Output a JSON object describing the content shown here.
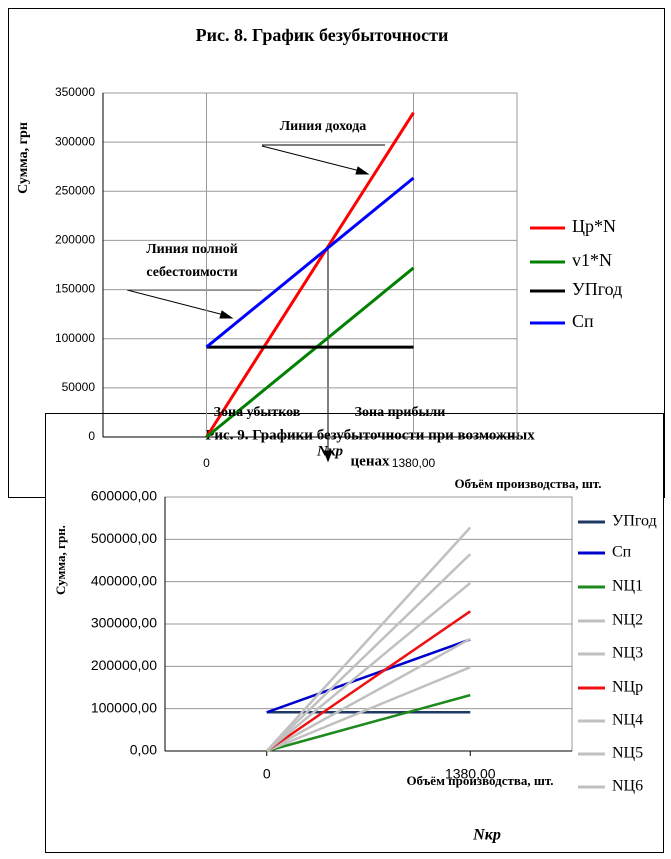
{
  "chart_data": [
    {
      "type": "line",
      "title": "Рис. 8. График безубыточности",
      "y_label": "Сумма, грн",
      "x_label": "Объём производства, шт.",
      "x": [
        0,
        1380
      ],
      "xlim": [
        -690,
        2070
      ],
      "xticks": [
        0,
        {
          "value": 1380,
          "label": "1380,00"
        }
      ],
      "ylim": [
        0,
        350000
      ],
      "yticks": [
        0,
        50000,
        100000,
        150000,
        200000,
        250000,
        300000,
        350000
      ],
      "grid": true,
      "legend": "right",
      "series": [
        {
          "name": "Цр*N",
          "color": "#ff0000",
          "values": [
            0,
            330000
          ]
        },
        {
          "name": "v1*N",
          "color": "#008000",
          "values": [
            0,
            172000
          ]
        },
        {
          "name": "УПгод",
          "color": "#000000",
          "values": [
            91500,
            91500
          ]
        },
        {
          "name": "Сп",
          "color": "#0000ff",
          "values": [
            91500,
            263500
          ]
        }
      ],
      "annotations": [
        "Линия дохода",
        "Линия полной",
        "себестоимости",
        "Зона убытков",
        "Зона прибыли",
        "Nкр"
      ]
    },
    {
      "type": "line",
      "title": [
        "Рис. 9. Графики безубыточности при возможных",
        "ценах"
      ],
      "y_label": "Сумма, грн.",
      "x_label": "Объём производства, шт.",
      "x": [
        0,
        1380
      ],
      "xlim": [
        -690,
        2070
      ],
      "xticks": [
        0,
        {
          "value": 1380,
          "label": "1380,00"
        }
      ],
      "ylim": [
        0,
        600000
      ],
      "yticks": [
        {
          "value": 0,
          "label": "0,00"
        },
        {
          "value": 100000,
          "label": "100000,00"
        },
        {
          "value": 200000,
          "label": "200000,00"
        },
        {
          "value": 300000,
          "label": "300000,00"
        },
        {
          "value": 400000,
          "label": "400000,00"
        },
        {
          "value": 500000,
          "label": "500000,00"
        },
        {
          "value": 600000,
          "label": "600000,00"
        }
      ],
      "grid": true,
      "legend": "right",
      "series": [
        {
          "name": "УПгод",
          "color": "#1f3864",
          "values": [
            91500,
            91500
          ]
        },
        {
          "name": "Сп",
          "color": "#0000cc",
          "values": [
            91500,
            263500
          ]
        },
        {
          "name": "NЦ1",
          "color": "#1e8a1e",
          "values": [
            0,
            132000
          ]
        },
        {
          "name": "NЦ2",
          "color": "#c0c0c0",
          "values": [
            0,
            198000
          ]
        },
        {
          "name": "NЦ3",
          "color": "#c0c0c0",
          "values": [
            0,
            265000
          ]
        },
        {
          "name": "NЦр",
          "color": "#ee1111",
          "values": [
            0,
            330000
          ]
        },
        {
          "name": "NЦ4",
          "color": "#c0c0c0",
          "values": [
            0,
            397000
          ]
        },
        {
          "name": "NЦ5",
          "color": "#c0c0c0",
          "values": [
            0,
            465000
          ]
        },
        {
          "name": "NЦ6",
          "color": "#c0c0c0",
          "values": [
            0,
            528000
          ]
        }
      ],
      "annotations": [
        "Nкр"
      ]
    }
  ]
}
